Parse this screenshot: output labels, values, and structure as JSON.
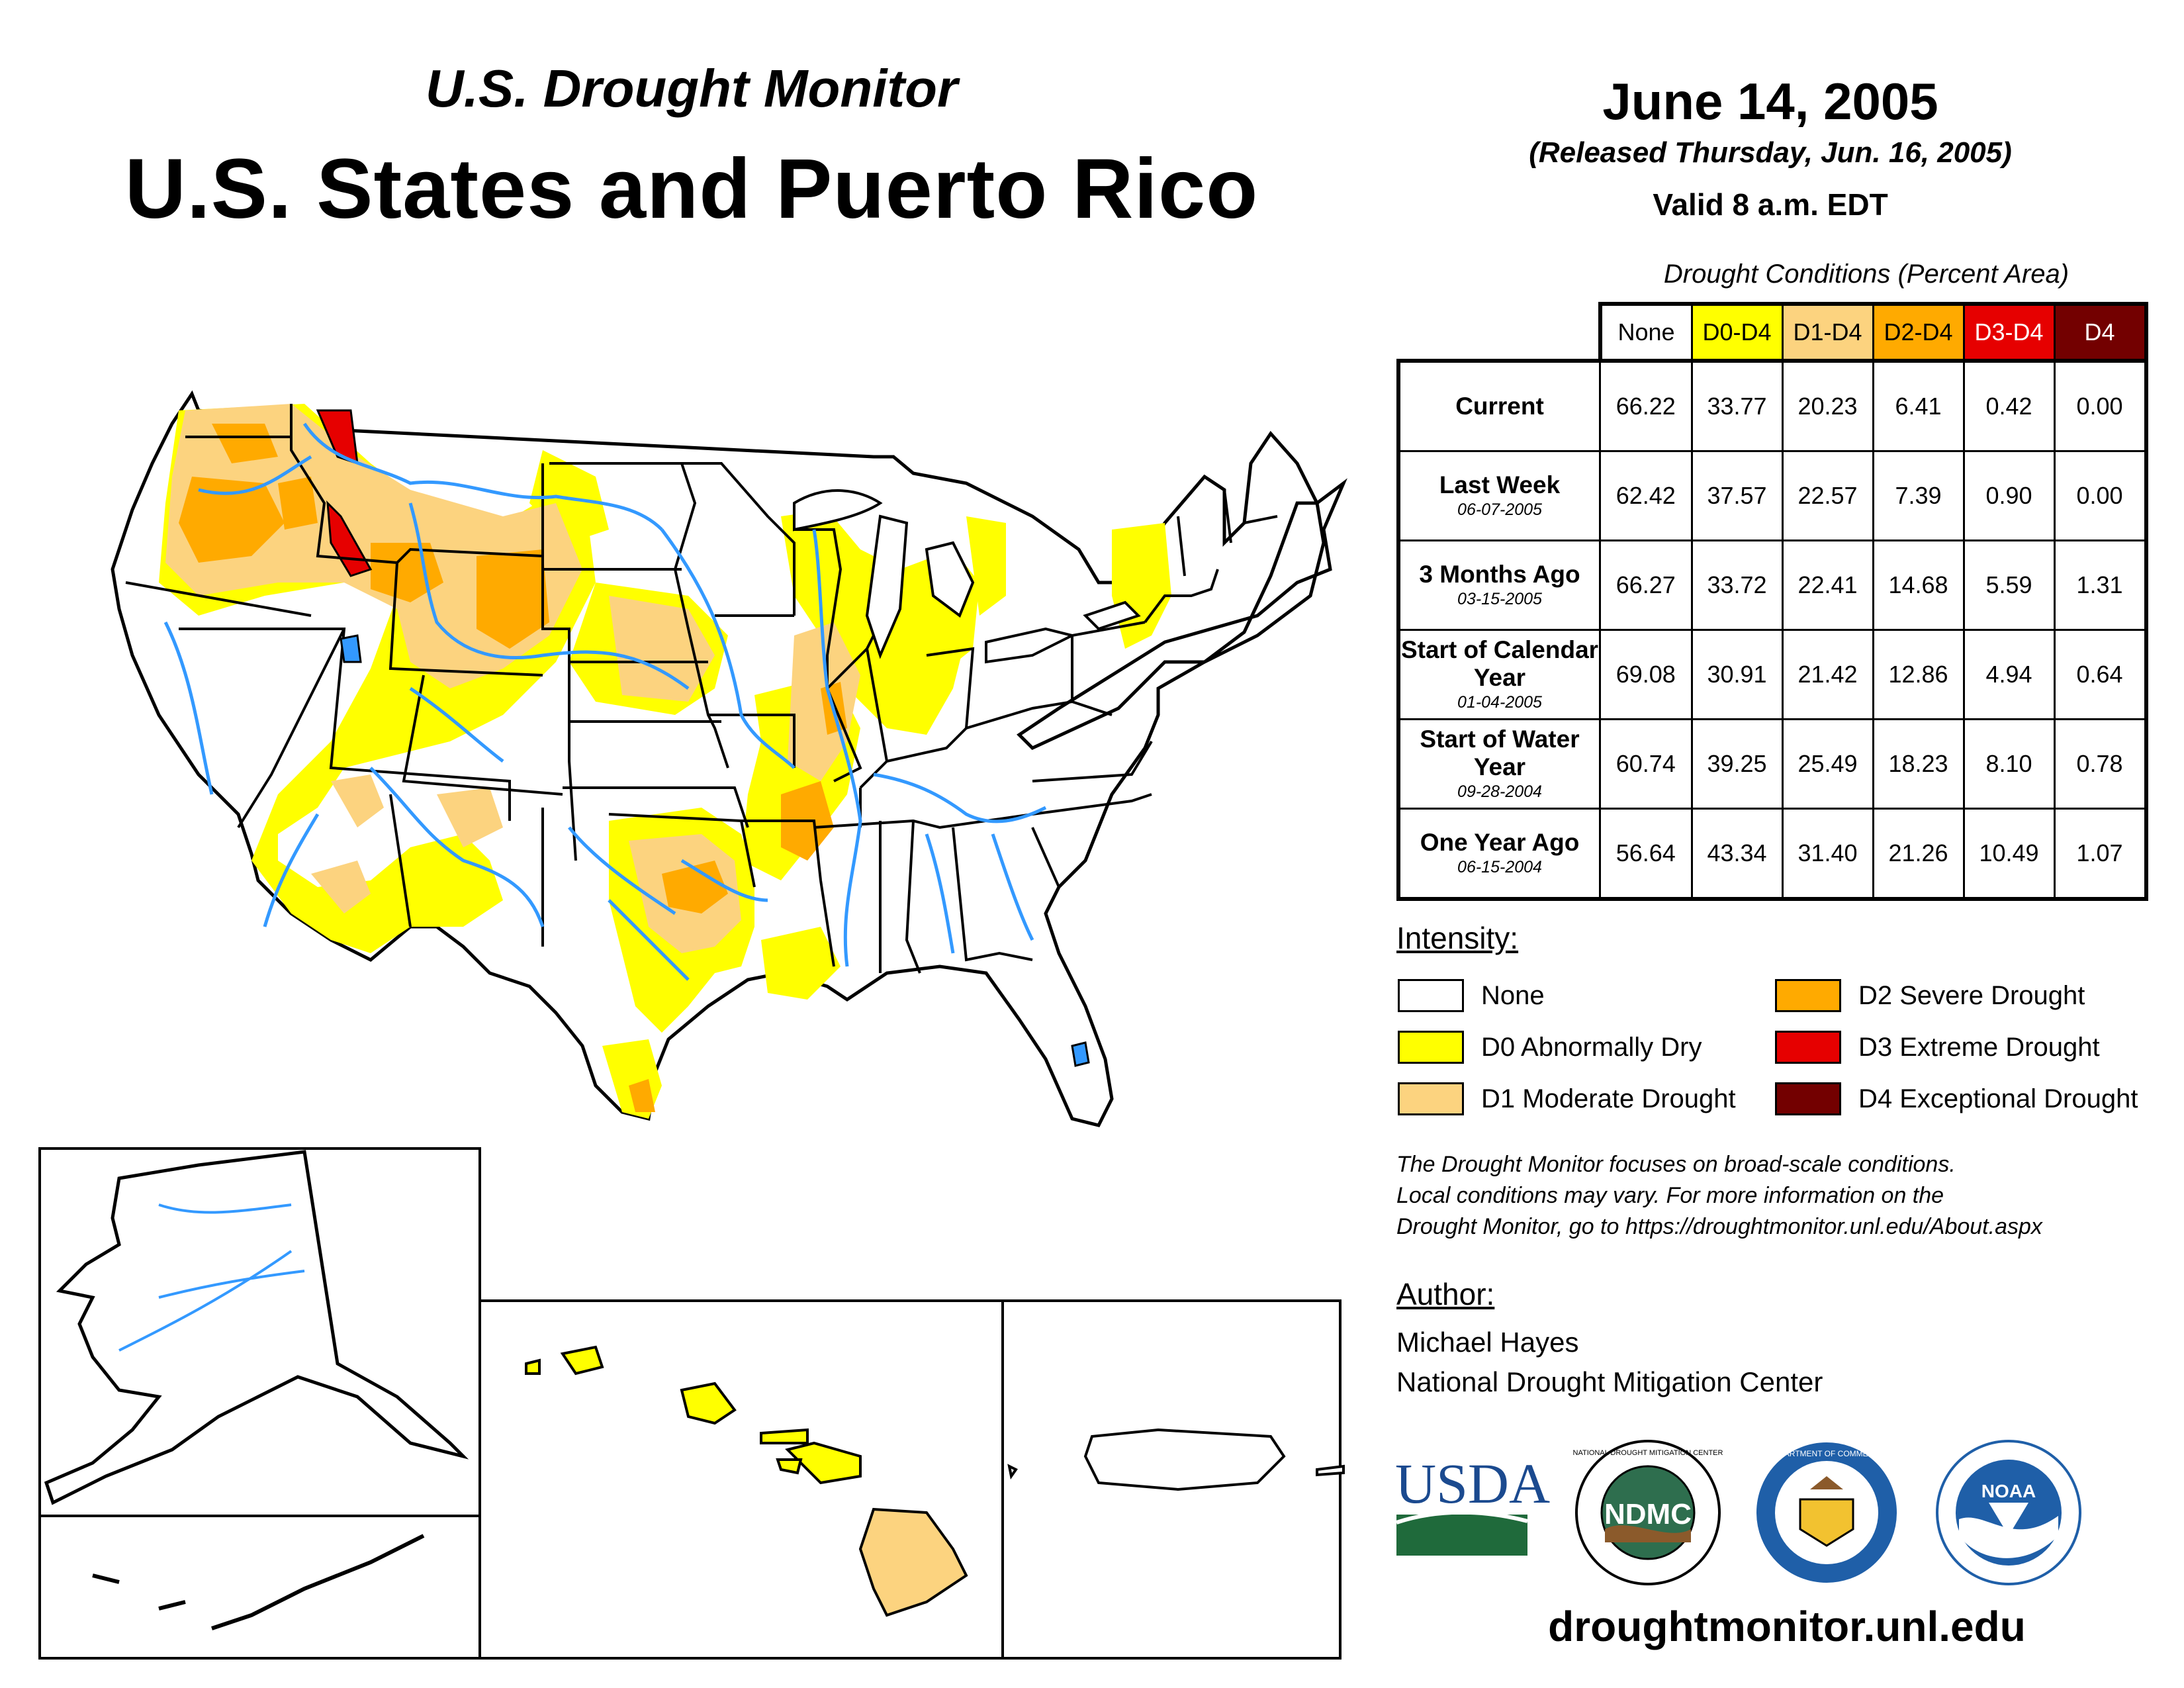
{
  "header": {
    "subtitle": "U.S. Drought Monitor",
    "title": "U.S. States and Puerto Rico",
    "date": "June 14, 2005",
    "released": "(Released Thursday, Jun. 16, 2005)",
    "valid": "Valid 8 a.m. EDT"
  },
  "table": {
    "caption": "Drought Conditions (Percent Area)",
    "columns": [
      "None",
      "D0-D4",
      "D1-D4",
      "D2-D4",
      "D3-D4",
      "D4"
    ],
    "column_colors": [
      "#ffffff",
      "#ffff00",
      "#fcd37f",
      "#ffaa00",
      "#e60000",
      "#730000"
    ],
    "rows": [
      {
        "label": "Current",
        "date": "",
        "values": [
          "66.22",
          "33.77",
          "20.23",
          "6.41",
          "0.42",
          "0.00"
        ]
      },
      {
        "label": "Last Week",
        "date": "06-07-2005",
        "values": [
          "62.42",
          "37.57",
          "22.57",
          "7.39",
          "0.90",
          "0.00"
        ]
      },
      {
        "label": "3 Months Ago",
        "date": "03-15-2005",
        "values": [
          "66.27",
          "33.72",
          "22.41",
          "14.68",
          "5.59",
          "1.31"
        ]
      },
      {
        "label": "Start of Calendar Year",
        "date": "01-04-2005",
        "values": [
          "69.08",
          "30.91",
          "21.42",
          "12.86",
          "4.94",
          "0.64"
        ]
      },
      {
        "label": "Start of Water Year",
        "date": "09-28-2004",
        "values": [
          "60.74",
          "39.25",
          "25.49",
          "18.23",
          "8.10",
          "0.78"
        ]
      },
      {
        "label": "One Year Ago",
        "date": "06-15-2004",
        "values": [
          "56.64",
          "43.34",
          "31.40",
          "21.26",
          "10.49",
          "1.07"
        ]
      }
    ]
  },
  "legend": {
    "title": "Intensity:",
    "items": [
      {
        "label": "None",
        "color": "#ffffff"
      },
      {
        "label": "D0 Abnormally Dry",
        "color": "#ffff00"
      },
      {
        "label": "D1 Moderate Drought",
        "color": "#fcd37f"
      },
      {
        "label": "D2 Severe Drought",
        "color": "#ffaa00"
      },
      {
        "label": "D3 Extreme Drought",
        "color": "#e60000"
      },
      {
        "label": "D4 Exceptional Drought",
        "color": "#730000"
      }
    ]
  },
  "note": {
    "line1": "The Drought Monitor focuses on broad-scale conditions.",
    "line2": "Local conditions may vary. For more information on the",
    "line3": "Drought Monitor, go to https://droughtmonitor.unl.edu/About.aspx"
  },
  "author": {
    "title": "Author:",
    "name": "Michael Hayes",
    "org": "National Drought Mitigation Center"
  },
  "logos": {
    "usda": "USDA",
    "ndmc": "NDMC",
    "ndmc_ring": "NATIONAL DROUGHT MITIGATION CENTER",
    "doc_ring": "DEPARTMENT OF COMMERCE",
    "noaa": "NOAA"
  },
  "url": "droughtmonitor.unl.edu",
  "colors": {
    "water": "#3399ff",
    "border": "#000000"
  }
}
